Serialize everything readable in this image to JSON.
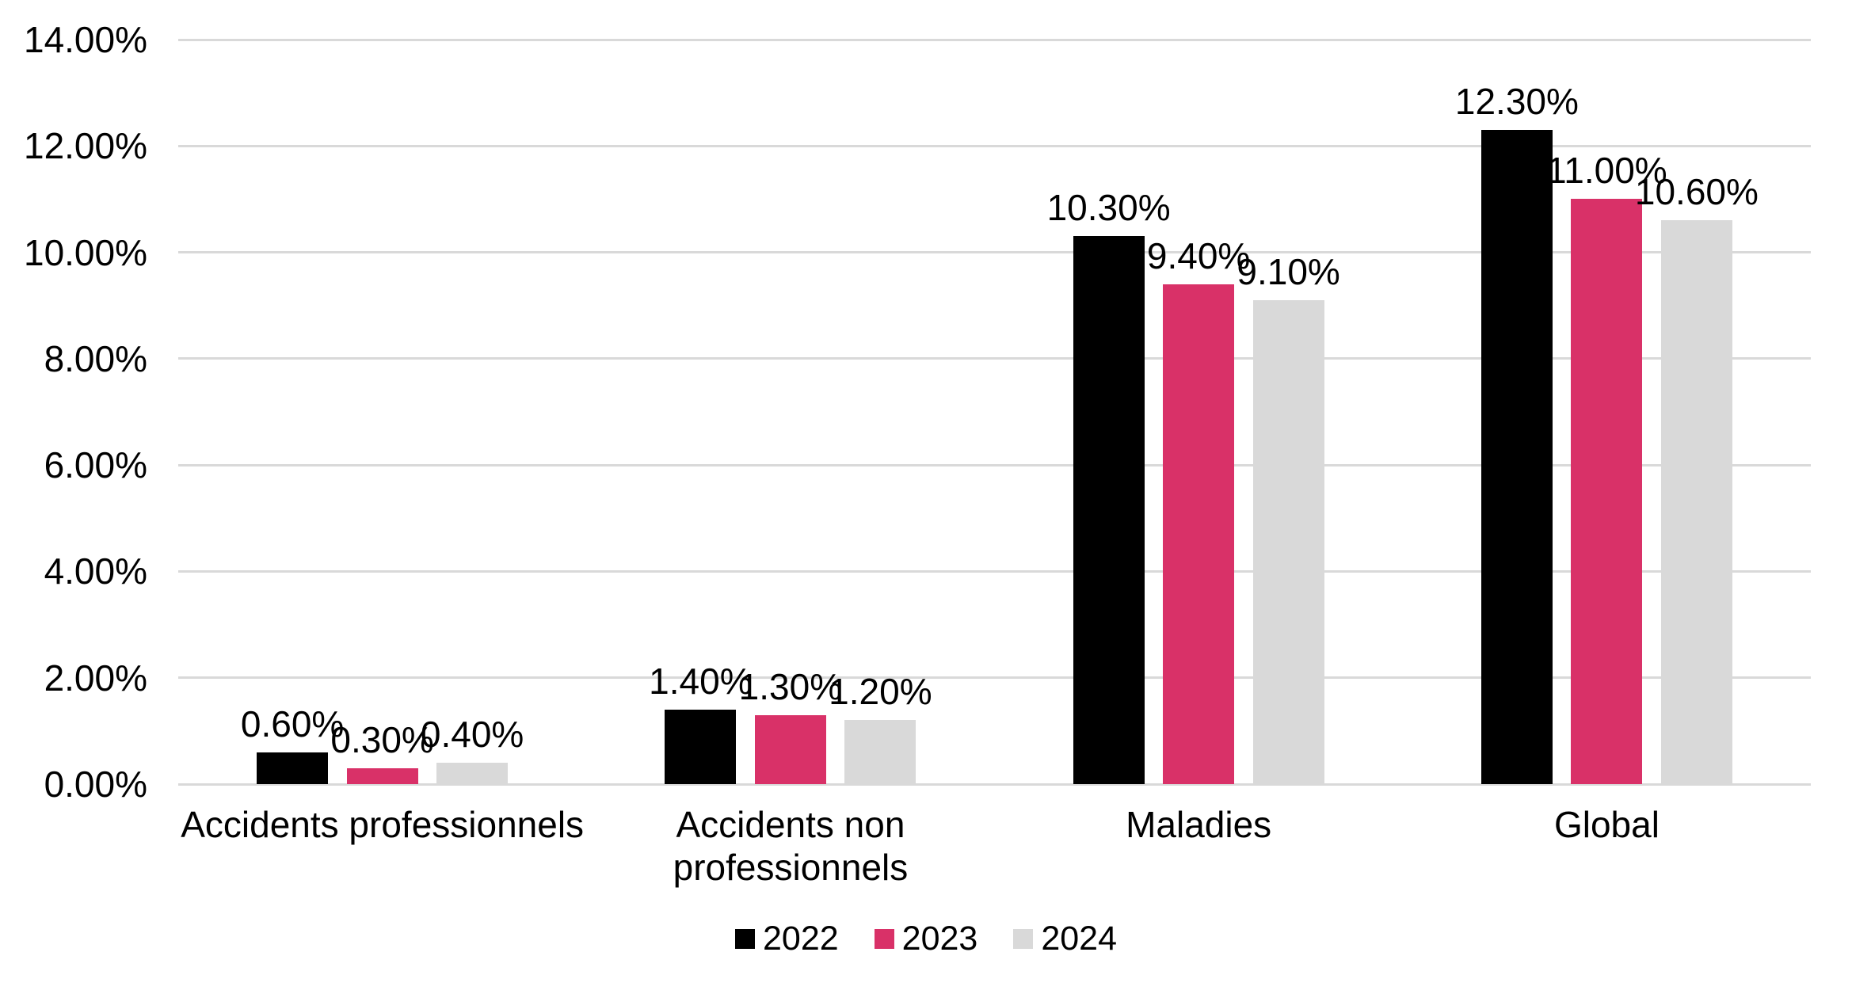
{
  "chart_data": {
    "type": "bar",
    "title": "",
    "categories": [
      "Accidents professionnels",
      "Accidents non professionnels",
      "Maladies",
      "Global"
    ],
    "category_lines": [
      [
        "Accidents professionnels"
      ],
      [
        "Accidents non",
        "professionnels"
      ],
      [
        "Maladies"
      ],
      [
        "Global"
      ]
    ],
    "series": [
      {
        "name": "2022",
        "color": "#000000",
        "values": [
          0.6,
          1.4,
          10.3,
          12.3
        ],
        "data_labels": [
          "0.60%",
          "1.40%",
          "10.30%",
          "12.30%"
        ]
      },
      {
        "name": "2023",
        "color": "#D93168",
        "values": [
          0.3,
          1.3,
          9.4,
          11.0
        ],
        "data_labels": [
          "0.30%",
          "1.30%",
          "9.40%",
          "11.00%"
        ]
      },
      {
        "name": "2024",
        "color": "#D9D9D9",
        "values": [
          0.4,
          1.2,
          9.1,
          10.6
        ],
        "data_labels": [
          "0.40%",
          "1.20%",
          "9.10%",
          "10.60%"
        ]
      }
    ],
    "y_axis": {
      "min": 0,
      "max": 14,
      "tick_step": 2,
      "tick_values": [
        0,
        2,
        4,
        6,
        8,
        10,
        12,
        14
      ],
      "tick_labels": [
        "0.00%",
        "2.00%",
        "4.00%",
        "6.00%",
        "8.00%",
        "10.00%",
        "12.00%",
        "14.00%"
      ]
    },
    "grid": true,
    "gridline_color": "#D9D9D9",
    "background_color": "#FFFFFF",
    "text_color": "#000000",
    "legend": {
      "position": "bottom",
      "entries": [
        "2022",
        "2023",
        "2024"
      ]
    }
  }
}
